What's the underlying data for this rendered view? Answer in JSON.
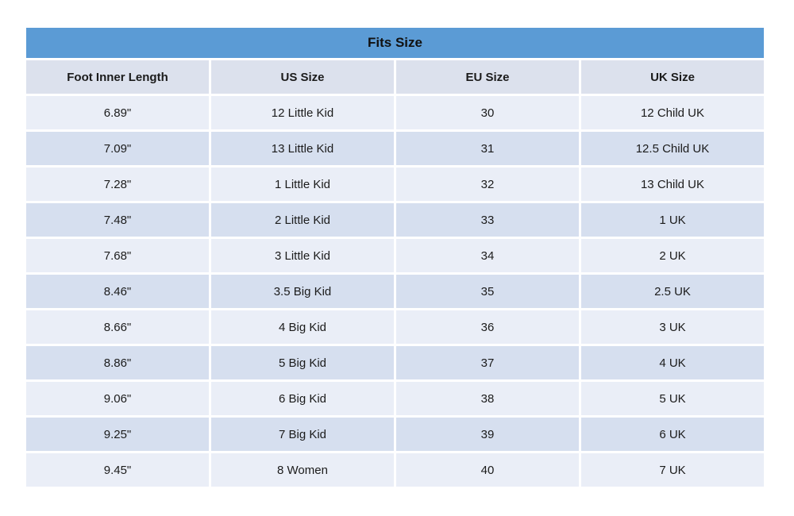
{
  "colors": {
    "title_bar": "#5b9bd5",
    "header_row": "#dce1ed",
    "row_light": "#eaeef7",
    "row_dark": "#d6dfef",
    "text": "#1b1b1b"
  },
  "chart_data": {
    "type": "table",
    "title": "Fits Size",
    "columns": [
      "Foot Inner Length",
      "US Size",
      "EU Size",
      "UK Size"
    ],
    "rows": [
      [
        "6.89\"",
        "12 Little Kid",
        "30",
        "12 Child UK"
      ],
      [
        "7.09\"",
        "13 Little Kid",
        "31",
        "12.5 Child UK"
      ],
      [
        "7.28\"",
        "1 Little Kid",
        "32",
        "13 Child UK"
      ],
      [
        "7.48\"",
        "2 Little Kid",
        "33",
        "1 UK"
      ],
      [
        "7.68\"",
        "3 Little Kid",
        "34",
        "2 UK"
      ],
      [
        "8.46\"",
        "3.5 Big Kid",
        "35",
        "2.5 UK"
      ],
      [
        "8.66\"",
        "4 Big Kid",
        "36",
        "3 UK"
      ],
      [
        "8.86\"",
        "5 Big Kid",
        "37",
        "4 UK"
      ],
      [
        "9.06\"",
        "6 Big Kid",
        "38",
        "5 UK"
      ],
      [
        "9.25\"",
        "7 Big Kid",
        "39",
        "6 UK"
      ],
      [
        "9.45\"",
        "8 Women",
        "40",
        "7 UK"
      ]
    ],
    "layout": {
      "title_bar_position": "top",
      "row_striping": "alternating light/dark, first data row light",
      "grid": "white 3px gaps between all cells"
    }
  }
}
